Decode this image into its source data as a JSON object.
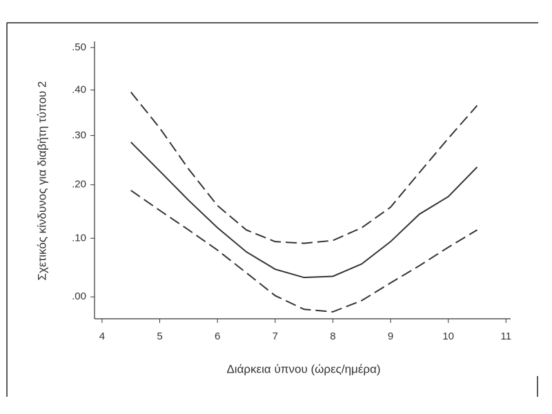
{
  "chart_data": {
    "type": "line",
    "x_label": "Διάρκεια ύπνου (ώρες/ημέρα)",
    "y_label": "Σχετικός κίνδυνος για διαβήτη τύπου 2",
    "x": [
      4.5,
      5,
      5.5,
      6,
      6.5,
      7,
      7.5,
      8,
      8.5,
      9,
      9.5,
      10,
      10.5
    ],
    "series": [
      {
        "color": "#333333",
        "dash": "solid",
        "values": [
          0.286,
          0.227,
          0.17,
          0.119,
          0.076,
          0.046,
          0.032,
          0.034,
          0.055,
          0.094,
          0.144,
          0.177,
          0.235
        ]
      },
      {
        "color": "#333333",
        "dash": "dashed",
        "values": [
          0.395,
          0.316,
          0.231,
          0.16,
          0.115,
          0.094,
          0.091,
          0.096,
          0.119,
          0.157,
          0.224,
          0.294,
          0.365
        ]
      },
      {
        "color": "#333333",
        "dash": "dashed",
        "values": [
          0.189,
          0.151,
          0.115,
          0.079,
          0.04,
          0.002,
          -0.02,
          -0.024,
          -0.006,
          0.023,
          0.052,
          0.084,
          0.115
        ]
      }
    ],
    "xlim": [
      3.87,
      11.08
    ],
    "xticks": [
      4,
      5,
      6,
      7,
      8,
      9,
      10,
      11
    ],
    "ylim": [
      -0.035,
      0.515
    ],
    "yscale": "log1p",
    "yticks": [
      {
        "value": 0,
        "label": ".00"
      },
      {
        "value": 0.1,
        "label": ".10"
      },
      {
        "value": 0.2,
        "label": ".20"
      },
      {
        "value": 0.3,
        "label": ".30"
      },
      {
        "value": 0.4,
        "label": ".40"
      },
      {
        "value": 0.5,
        "label": ".50"
      }
    ]
  }
}
